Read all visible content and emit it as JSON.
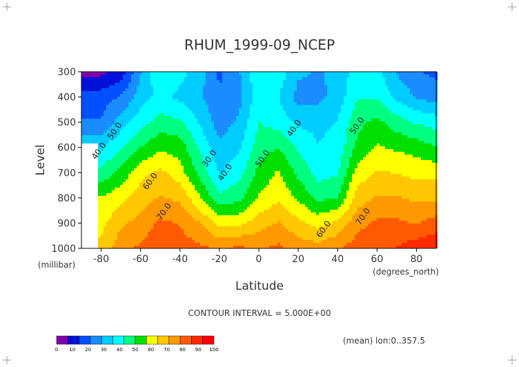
{
  "chart_data": {
    "type": "heatmap",
    "title": "RHUM_1999-09_NCEP",
    "xlabel": "Latitude",
    "ylabel": "Level",
    "x_units_label": "(degrees_north)",
    "y_units_label": "(millibar)",
    "x_ticks": [
      -80,
      -60,
      -40,
      -20,
      0,
      20,
      40,
      60,
      80
    ],
    "y_ticks": [
      300,
      400,
      500,
      600,
      700,
      800,
      900,
      1000
    ],
    "xlim": [
      -90,
      90
    ],
    "ylim": [
      1000,
      300
    ],
    "y_inverted": true,
    "contour_interval_text": "CONTOUR INTERVAL = 5.000E+00",
    "footnote": "(mean) lon:0..357.5",
    "contour_labels": [
      {
        "text": "40.0",
        "x": -80,
        "y": 620
      },
      {
        "text": "50.0",
        "x": -72,
        "y": 540
      },
      {
        "text": "60.0",
        "x": -54,
        "y": 740
      },
      {
        "text": "70.0",
        "x": -47,
        "y": 860
      },
      {
        "text": "30.0",
        "x": -24,
        "y": 650
      },
      {
        "text": "40.0",
        "x": -16,
        "y": 705
      },
      {
        "text": "50.0",
        "x": 3,
        "y": 650
      },
      {
        "text": "40.0",
        "x": 19,
        "y": 530
      },
      {
        "text": "60.0",
        "x": 34,
        "y": 930
      },
      {
        "text": "50.0",
        "x": 51,
        "y": 520
      },
      {
        "text": "70.0",
        "x": 54,
        "y": 880
      }
    ],
    "colorbar": {
      "ticks": [
        "0",
        "10",
        "20",
        "30",
        "40",
        "50",
        "60",
        "70",
        "80",
        "90",
        "100"
      ],
      "colors": [
        "#7f00a8",
        "#0010d8",
        "#0050ff",
        "#1a8cff",
        "#00ccff",
        "#00ffff",
        "#00ff80",
        "#00e000",
        "#ffff00",
        "#ffc800",
        "#ff9900",
        "#ff5a00",
        "#ff2a00",
        "#ff0000"
      ],
      "levels": [
        0,
        10,
        20,
        30,
        40,
        50,
        60,
        70,
        80,
        90,
        100
      ]
    },
    "lat_grid": [
      -80,
      -70,
      -60,
      -50,
      -40,
      -30,
      -20,
      -10,
      0,
      10,
      20,
      30,
      40,
      50,
      60,
      70,
      80,
      90
    ],
    "level_grid": [
      300,
      400,
      500,
      600,
      700,
      800,
      900,
      1000
    ],
    "values": [
      [
        5,
        10,
        28,
        42,
        38,
        32,
        20,
        28,
        42,
        40,
        30,
        28,
        30,
        40,
        38,
        28,
        22,
        20
      ],
      [
        18,
        22,
        32,
        38,
        34,
        30,
        22,
        26,
        40,
        36,
        26,
        26,
        32,
        42,
        42,
        34,
        28,
        25
      ],
      [
        22,
        32,
        40,
        46,
        44,
        35,
        25,
        30,
        43,
        40,
        34,
        34,
        36,
        48,
        52,
        46,
        42,
        40
      ],
      [
        35,
        42,
        50,
        56,
        54,
        42,
        30,
        35,
        46,
        50,
        42,
        36,
        38,
        52,
        58,
        56,
        54,
        50
      ],
      [
        45,
        52,
        62,
        66,
        60,
        48,
        35,
        40,
        52,
        58,
        48,
        40,
        42,
        60,
        65,
        64,
        62,
        62
      ],
      [
        58,
        62,
        68,
        72,
        70,
        58,
        45,
        48,
        58,
        63,
        56,
        48,
        50,
        68,
        72,
        72,
        70,
        70
      ],
      [
        62,
        70,
        74,
        80,
        78,
        72,
        62,
        62,
        68,
        72,
        66,
        62,
        66,
        76,
        80,
        80,
        78,
        82
      ],
      [
        66,
        76,
        80,
        84,
        82,
        80,
        78,
        80,
        78,
        80,
        76,
        74,
        78,
        82,
        86,
        86,
        90,
        92
      ]
    ]
  }
}
